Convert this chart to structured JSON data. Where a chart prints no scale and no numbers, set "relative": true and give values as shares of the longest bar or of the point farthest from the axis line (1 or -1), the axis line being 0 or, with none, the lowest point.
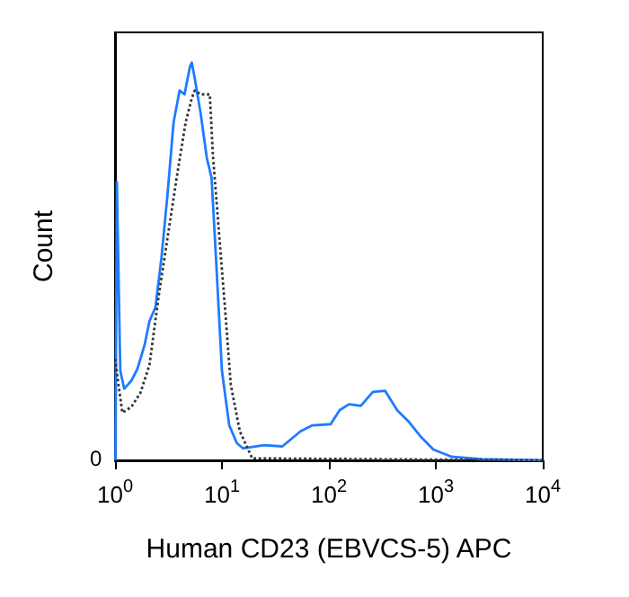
{
  "chart_data": {
    "type": "line",
    "xlabel": "Human CD23 (EBVCS-5) APC",
    "ylabel": "Count",
    "relative": true,
    "log": "x",
    "xlim": [
      1,
      10000
    ],
    "xticks": [
      {
        "value": 1,
        "label": "10$^{0}$"
      },
      {
        "value": 10,
        "label": "10$^{1}$"
      },
      {
        "value": 100,
        "label": "10$^{2}$"
      },
      {
        "value": 1000,
        "label": "10$^{3}$"
      },
      {
        "value": 10000,
        "label": "10$^{4}$"
      }
    ],
    "annotations": [
      "0"
    ],
    "series": [
      {
        "color": "#1f7bff",
        "line_style": "solid",
        "x": [
          1.01,
          1.04,
          1.12,
          1.22,
          1.42,
          1.62,
          1.89,
          2.1,
          2.39,
          2.72,
          3.1,
          3.53,
          4.02,
          4.47,
          5.02,
          5.22,
          5.57,
          6.34,
          7.22,
          8.0,
          8.79,
          10.0,
          11.7,
          13.8,
          15.8,
          24.8,
          36.7,
          54.2,
          70.3,
          104,
          126,
          154,
          199,
          258,
          335,
          435,
          564,
          731,
          949,
          1403,
          2687,
          10000
        ],
        "values": [
          0,
          0.7,
          0.225,
          0.18,
          0.2,
          0.23,
          0.29,
          0.35,
          0.385,
          0.51,
          0.67,
          0.85,
          0.93,
          0.92,
          0.99,
          1,
          0.96,
          0.87,
          0.76,
          0.71,
          0.51,
          0.225,
          0.088,
          0.043,
          0.03,
          0.038,
          0.035,
          0.073,
          0.088,
          0.091,
          0.126,
          0.141,
          0.137,
          0.172,
          0.175,
          0.126,
          0.096,
          0.058,
          0.027,
          0.009,
          0.003,
          0
        ]
      },
      {
        "color": "#333333",
        "line_style": "dotted",
        "x": [
          1.0,
          1.17,
          1.42,
          1.73,
          2.1,
          2.55,
          3.1,
          3.77,
          4.58,
          5.22,
          5.57,
          6.34,
          7.7,
          8.22,
          9.4,
          10.7,
          12.1,
          14.7,
          19.2,
          10000
        ],
        "values": [
          0.255,
          0.12,
          0.134,
          0.17,
          0.24,
          0.41,
          0.56,
          0.71,
          0.85,
          0.91,
          0.93,
          0.92,
          0.92,
          0.77,
          0.57,
          0.38,
          0.19,
          0.073,
          0.005,
          0
        ]
      }
    ]
  }
}
